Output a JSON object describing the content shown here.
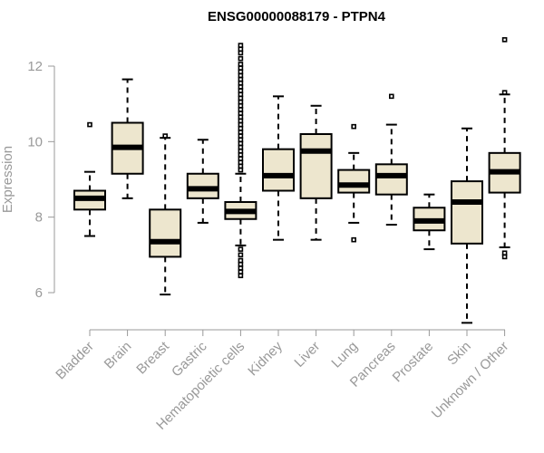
{
  "chart_data": {
    "type": "boxplot",
    "title": "ENSG00000088179 - PTPN4",
    "xlabel": "",
    "ylabel": "Expression",
    "ylim": [
      4.9,
      12.9
    ],
    "yticks": [
      6,
      8,
      10,
      12
    ],
    "categories": [
      "Bladder",
      "Brain",
      "Breast",
      "Gastric",
      "Hematopoietic cells",
      "Kidney",
      "Liver",
      "Lung",
      "Pancreas",
      "Prostate",
      "Skin",
      "Unknown / Other"
    ],
    "boxes": [
      {
        "category": "Bladder",
        "whisker_low": 7.5,
        "q1": 8.2,
        "median": 8.5,
        "q3": 8.7,
        "whisker_high": 9.2,
        "outliers": [
          10.45
        ]
      },
      {
        "category": "Brain",
        "whisker_low": 8.5,
        "q1": 9.15,
        "median": 9.85,
        "q3": 10.5,
        "whisker_high": 11.65,
        "outliers": []
      },
      {
        "category": "Breast",
        "whisker_low": 5.95,
        "q1": 6.95,
        "median": 7.35,
        "q3": 8.2,
        "whisker_high": 10.1,
        "outliers": [
          10.15
        ]
      },
      {
        "category": "Gastric",
        "whisker_low": 7.85,
        "q1": 8.5,
        "median": 8.75,
        "q3": 9.15,
        "whisker_high": 10.05,
        "outliers": []
      },
      {
        "category": "Hematopoietic cells",
        "whisker_low": 7.25,
        "q1": 7.95,
        "median": 8.15,
        "q3": 8.4,
        "whisker_high": 9.15,
        "outliers": [
          12.55,
          12.45,
          12.35,
          12.2,
          12.05,
          11.95,
          11.85,
          11.75,
          11.65,
          11.55,
          11.45,
          11.35,
          11.25,
          11.15,
          11.05,
          10.95,
          10.85,
          10.75,
          10.65,
          10.55,
          10.45,
          10.35,
          10.25,
          10.15,
          10.05,
          9.95,
          9.85,
          9.75,
          9.65,
          9.55,
          9.45,
          9.35,
          9.25,
          7.15,
          7.0,
          6.85,
          6.75,
          6.65,
          6.55,
          6.45
        ]
      },
      {
        "category": "Kidney",
        "whisker_low": 7.4,
        "q1": 8.7,
        "median": 9.1,
        "q3": 9.8,
        "whisker_high": 11.2,
        "outliers": []
      },
      {
        "category": "Liver",
        "whisker_low": 7.4,
        "q1": 8.5,
        "median": 9.75,
        "q3": 10.2,
        "whisker_high": 10.95,
        "outliers": []
      },
      {
        "category": "Lung",
        "whisker_low": 7.85,
        "q1": 8.65,
        "median": 8.85,
        "q3": 9.25,
        "whisker_high": 9.7,
        "outliers": [
          10.4,
          7.4
        ]
      },
      {
        "category": "Pancreas",
        "whisker_low": 7.8,
        "q1": 8.6,
        "median": 9.1,
        "q3": 9.4,
        "whisker_high": 10.45,
        "outliers": [
          11.2
        ]
      },
      {
        "category": "Prostate",
        "whisker_low": 7.15,
        "q1": 7.65,
        "median": 7.9,
        "q3": 8.25,
        "whisker_high": 8.6,
        "outliers": []
      },
      {
        "category": "Skin",
        "whisker_low": 5.2,
        "q1": 7.3,
        "median": 8.4,
        "q3": 8.95,
        "whisker_high": 10.35,
        "outliers": []
      },
      {
        "category": "Unknown / Other",
        "whisker_low": 7.2,
        "q1": 8.65,
        "median": 9.2,
        "q3": 9.7,
        "whisker_high": 11.25,
        "outliers": [
          12.7,
          11.3,
          7.05,
          6.95
        ]
      }
    ]
  }
}
